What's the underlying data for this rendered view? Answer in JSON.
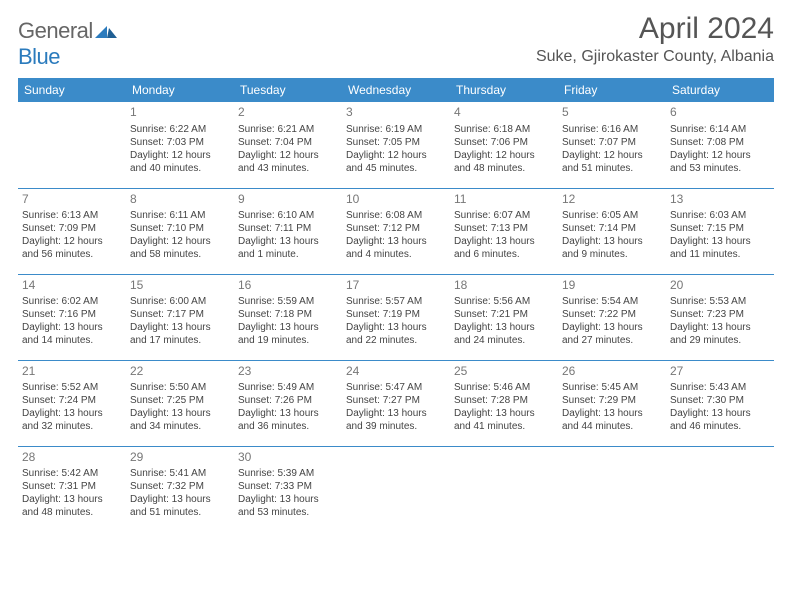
{
  "logo": {
    "text1": "General",
    "text2": "Blue",
    "color_general": "#666666",
    "color_blue": "#2b7bbd"
  },
  "title": "April 2024",
  "location": "Suke, Gjirokaster County, Albania",
  "header_bg": "#3b8bc9",
  "header_text_color": "#ffffff",
  "divider_color": "#3b8bc9",
  "weekdays": [
    "Sunday",
    "Monday",
    "Tuesday",
    "Wednesday",
    "Thursday",
    "Friday",
    "Saturday"
  ],
  "weeks": [
    [
      null,
      {
        "n": "1",
        "sr": "Sunrise: 6:22 AM",
        "ss": "Sunset: 7:03 PM",
        "d1": "Daylight: 12 hours",
        "d2": "and 40 minutes."
      },
      {
        "n": "2",
        "sr": "Sunrise: 6:21 AM",
        "ss": "Sunset: 7:04 PM",
        "d1": "Daylight: 12 hours",
        "d2": "and 43 minutes."
      },
      {
        "n": "3",
        "sr": "Sunrise: 6:19 AM",
        "ss": "Sunset: 7:05 PM",
        "d1": "Daylight: 12 hours",
        "d2": "and 45 minutes."
      },
      {
        "n": "4",
        "sr": "Sunrise: 6:18 AM",
        "ss": "Sunset: 7:06 PM",
        "d1": "Daylight: 12 hours",
        "d2": "and 48 minutes."
      },
      {
        "n": "5",
        "sr": "Sunrise: 6:16 AM",
        "ss": "Sunset: 7:07 PM",
        "d1": "Daylight: 12 hours",
        "d2": "and 51 minutes."
      },
      {
        "n": "6",
        "sr": "Sunrise: 6:14 AM",
        "ss": "Sunset: 7:08 PM",
        "d1": "Daylight: 12 hours",
        "d2": "and 53 minutes."
      }
    ],
    [
      {
        "n": "7",
        "sr": "Sunrise: 6:13 AM",
        "ss": "Sunset: 7:09 PM",
        "d1": "Daylight: 12 hours",
        "d2": "and 56 minutes."
      },
      {
        "n": "8",
        "sr": "Sunrise: 6:11 AM",
        "ss": "Sunset: 7:10 PM",
        "d1": "Daylight: 12 hours",
        "d2": "and 58 minutes."
      },
      {
        "n": "9",
        "sr": "Sunrise: 6:10 AM",
        "ss": "Sunset: 7:11 PM",
        "d1": "Daylight: 13 hours",
        "d2": "and 1 minute."
      },
      {
        "n": "10",
        "sr": "Sunrise: 6:08 AM",
        "ss": "Sunset: 7:12 PM",
        "d1": "Daylight: 13 hours",
        "d2": "and 4 minutes."
      },
      {
        "n": "11",
        "sr": "Sunrise: 6:07 AM",
        "ss": "Sunset: 7:13 PM",
        "d1": "Daylight: 13 hours",
        "d2": "and 6 minutes."
      },
      {
        "n": "12",
        "sr": "Sunrise: 6:05 AM",
        "ss": "Sunset: 7:14 PM",
        "d1": "Daylight: 13 hours",
        "d2": "and 9 minutes."
      },
      {
        "n": "13",
        "sr": "Sunrise: 6:03 AM",
        "ss": "Sunset: 7:15 PM",
        "d1": "Daylight: 13 hours",
        "d2": "and 11 minutes."
      }
    ],
    [
      {
        "n": "14",
        "sr": "Sunrise: 6:02 AM",
        "ss": "Sunset: 7:16 PM",
        "d1": "Daylight: 13 hours",
        "d2": "and 14 minutes."
      },
      {
        "n": "15",
        "sr": "Sunrise: 6:00 AM",
        "ss": "Sunset: 7:17 PM",
        "d1": "Daylight: 13 hours",
        "d2": "and 17 minutes."
      },
      {
        "n": "16",
        "sr": "Sunrise: 5:59 AM",
        "ss": "Sunset: 7:18 PM",
        "d1": "Daylight: 13 hours",
        "d2": "and 19 minutes."
      },
      {
        "n": "17",
        "sr": "Sunrise: 5:57 AM",
        "ss": "Sunset: 7:19 PM",
        "d1": "Daylight: 13 hours",
        "d2": "and 22 minutes."
      },
      {
        "n": "18",
        "sr": "Sunrise: 5:56 AM",
        "ss": "Sunset: 7:21 PM",
        "d1": "Daylight: 13 hours",
        "d2": "and 24 minutes."
      },
      {
        "n": "19",
        "sr": "Sunrise: 5:54 AM",
        "ss": "Sunset: 7:22 PM",
        "d1": "Daylight: 13 hours",
        "d2": "and 27 minutes."
      },
      {
        "n": "20",
        "sr": "Sunrise: 5:53 AM",
        "ss": "Sunset: 7:23 PM",
        "d1": "Daylight: 13 hours",
        "d2": "and 29 minutes."
      }
    ],
    [
      {
        "n": "21",
        "sr": "Sunrise: 5:52 AM",
        "ss": "Sunset: 7:24 PM",
        "d1": "Daylight: 13 hours",
        "d2": "and 32 minutes."
      },
      {
        "n": "22",
        "sr": "Sunrise: 5:50 AM",
        "ss": "Sunset: 7:25 PM",
        "d1": "Daylight: 13 hours",
        "d2": "and 34 minutes."
      },
      {
        "n": "23",
        "sr": "Sunrise: 5:49 AM",
        "ss": "Sunset: 7:26 PM",
        "d1": "Daylight: 13 hours",
        "d2": "and 36 minutes."
      },
      {
        "n": "24",
        "sr": "Sunrise: 5:47 AM",
        "ss": "Sunset: 7:27 PM",
        "d1": "Daylight: 13 hours",
        "d2": "and 39 minutes."
      },
      {
        "n": "25",
        "sr": "Sunrise: 5:46 AM",
        "ss": "Sunset: 7:28 PM",
        "d1": "Daylight: 13 hours",
        "d2": "and 41 minutes."
      },
      {
        "n": "26",
        "sr": "Sunrise: 5:45 AM",
        "ss": "Sunset: 7:29 PM",
        "d1": "Daylight: 13 hours",
        "d2": "and 44 minutes."
      },
      {
        "n": "27",
        "sr": "Sunrise: 5:43 AM",
        "ss": "Sunset: 7:30 PM",
        "d1": "Daylight: 13 hours",
        "d2": "and 46 minutes."
      }
    ],
    [
      {
        "n": "28",
        "sr": "Sunrise: 5:42 AM",
        "ss": "Sunset: 7:31 PM",
        "d1": "Daylight: 13 hours",
        "d2": "and 48 minutes."
      },
      {
        "n": "29",
        "sr": "Sunrise: 5:41 AM",
        "ss": "Sunset: 7:32 PM",
        "d1": "Daylight: 13 hours",
        "d2": "and 51 minutes."
      },
      {
        "n": "30",
        "sr": "Sunrise: 5:39 AM",
        "ss": "Sunset: 7:33 PM",
        "d1": "Daylight: 13 hours",
        "d2": "and 53 minutes."
      },
      null,
      null,
      null,
      null
    ]
  ]
}
